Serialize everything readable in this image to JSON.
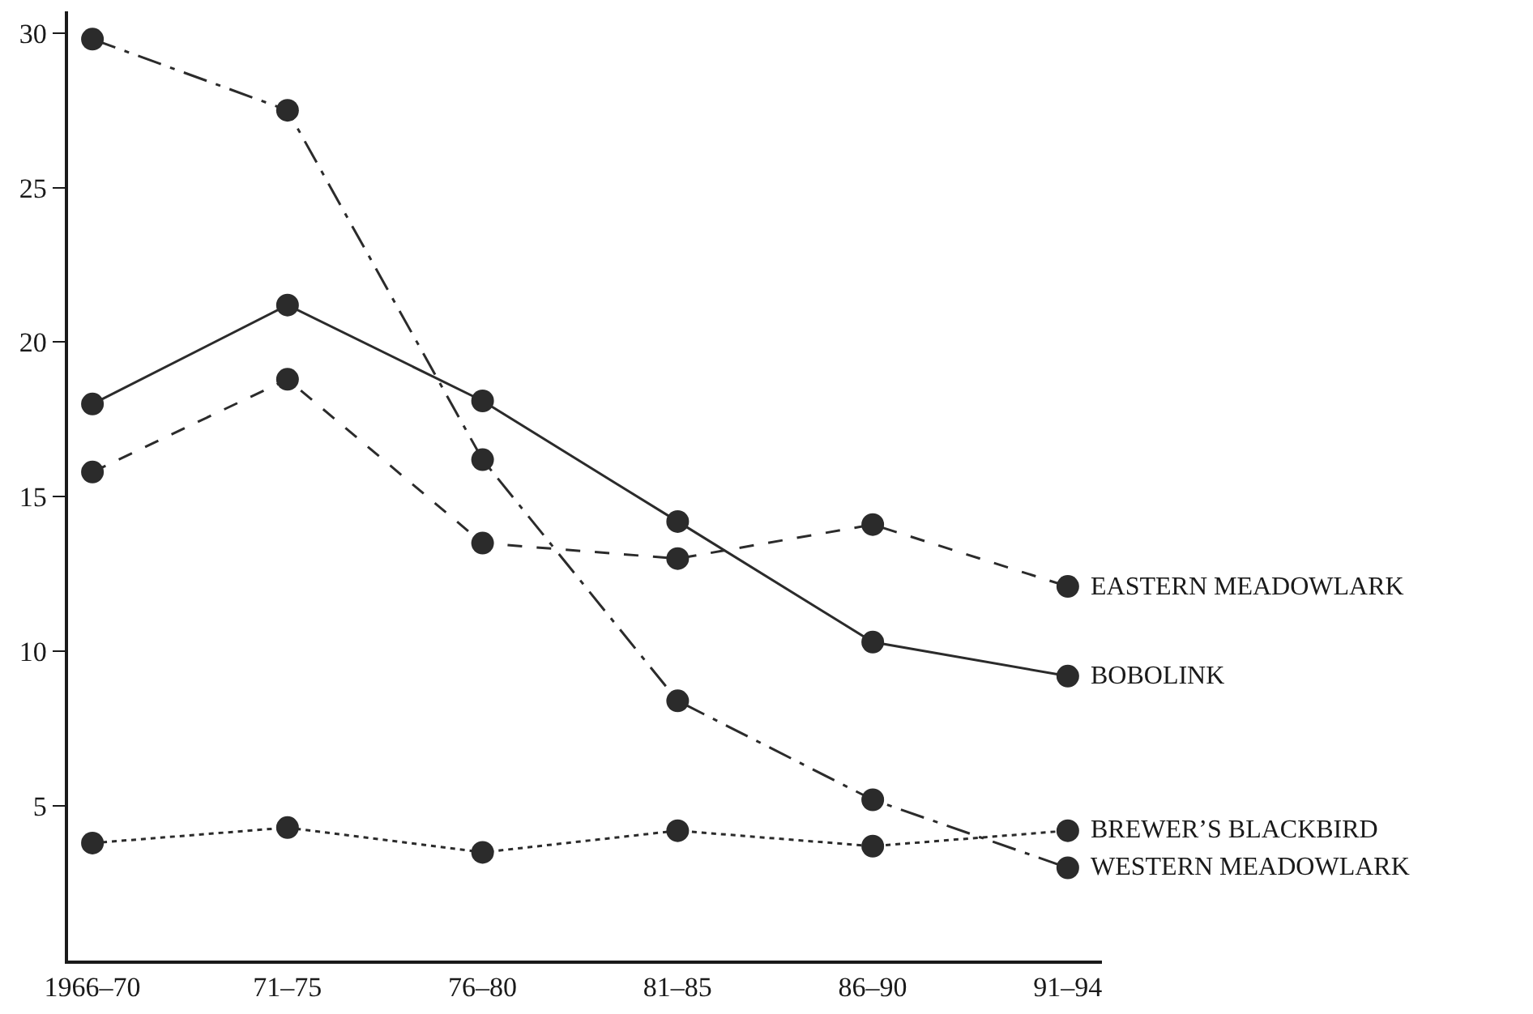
{
  "chart_data": {
    "type": "line",
    "categories": [
      "1966–70",
      "71–75",
      "76–80",
      "81–85",
      "86–90",
      "91–94"
    ],
    "series": [
      {
        "name": "EASTERN MEADOWLARK",
        "color": "#2b2b2b",
        "line_style": "dashed",
        "values": [
          15.8,
          18.8,
          13.5,
          13.0,
          14.1,
          12.1
        ]
      },
      {
        "name": "BOBOLINK",
        "color": "#2b2b2b",
        "line_style": "solid",
        "values": [
          18.0,
          21.2,
          18.1,
          14.2,
          10.3,
          9.2
        ]
      },
      {
        "name": "BREWER’S BLACKBIRD",
        "color": "#2b2b2b",
        "line_style": "dotted",
        "values": [
          3.8,
          4.3,
          3.5,
          4.2,
          3.7,
          4.2
        ]
      },
      {
        "name": "WESTERN MEADOWLARK",
        "color": "#2b2b2b",
        "line_style": "dashdot",
        "values": [
          29.8,
          27.5,
          16.2,
          8.4,
          5.2,
          3.0
        ]
      }
    ],
    "ylim": [
      0,
      30.7
    ],
    "yticks": [
      5,
      10,
      15,
      20,
      25,
      30
    ],
    "marker": "circle"
  }
}
